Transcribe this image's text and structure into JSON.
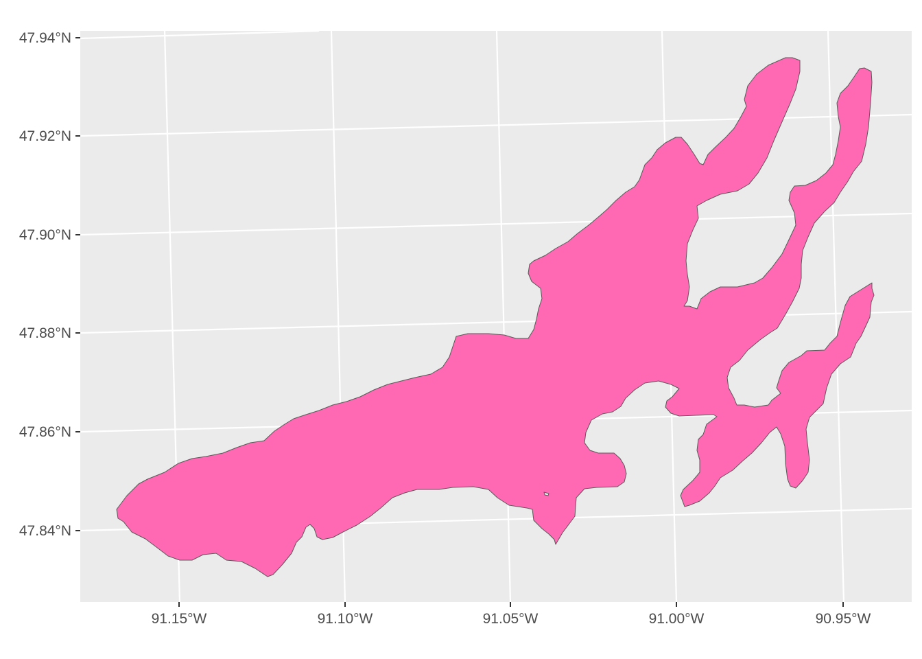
{
  "map": {
    "type": "sf-polygon-map",
    "background_color": "#EBEBEB",
    "grid_color": "#FFFFFF",
    "fill_color": "#FF69B4",
    "outline_color": "#595959",
    "lat_ticks": [
      {
        "value": 47.94,
        "label": "47.94°N"
      },
      {
        "value": 47.92,
        "label": "47.92°N"
      },
      {
        "value": 47.9,
        "label": "47.90°N"
      },
      {
        "value": 47.88,
        "label": "47.88°N"
      },
      {
        "value": 47.86,
        "label": "47.86°N"
      },
      {
        "value": 47.84,
        "label": "47.84°N"
      }
    ],
    "lon_ticks": [
      {
        "value": -91.15,
        "label": "91.15°W"
      },
      {
        "value": -91.1,
        "label": "91.10°W"
      },
      {
        "value": -91.05,
        "label": "91.05°W"
      },
      {
        "value": -91.0,
        "label": "91.00°W"
      },
      {
        "value": -90.95,
        "label": "90.95°W"
      }
    ]
  }
}
